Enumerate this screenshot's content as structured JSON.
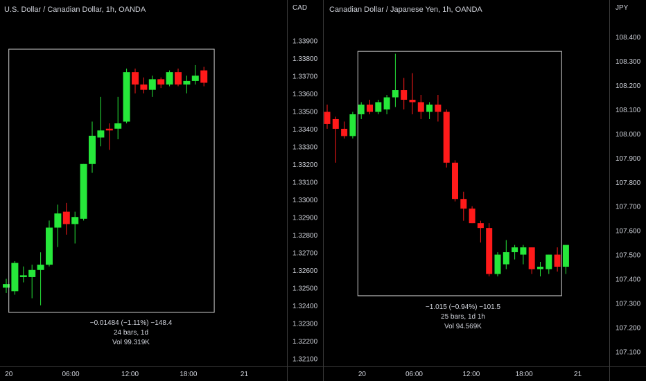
{
  "colors": {
    "background": "#000000",
    "text": "#d1d4dc",
    "up": "#26e83a",
    "down": "#ff1a1a",
    "divider": "#3a3a3a",
    "range_box": "#cfcfcf"
  },
  "chart_data": [
    {
      "type": "candlestick",
      "title": "U.S. Dollar / Canadian Dollar, 1h, OANDA",
      "currency": "CAD",
      "ylim": [
        1.3205,
        1.3405
      ],
      "y_ticks": [
        "1.33900",
        "1.33800",
        "1.33700",
        "1.33600",
        "1.33500",
        "1.33400",
        "1.33300",
        "1.33200",
        "1.33100",
        "1.33000",
        "1.32900",
        "1.32800",
        "1.32700",
        "1.32600",
        "1.32500",
        "1.32400",
        "1.32300",
        "1.32200",
        "1.32100"
      ],
      "x_ticks": [
        {
          "label": "20",
          "index": 0.3
        },
        {
          "label": "06:00",
          "index": 7.5
        },
        {
          "label": "12:00",
          "index": 14.4
        },
        {
          "label": "18:00",
          "index": 21.2
        },
        {
          "label": "21",
          "index": 27.7
        }
      ],
      "candles": [
        [
          1.325,
          1.3252,
          1.3247,
          1.3255
        ],
        [
          1.3248,
          1.3264,
          1.3246,
          1.3265
        ],
        [
          1.3256,
          1.3257,
          1.3253,
          1.3262
        ],
        [
          1.3256,
          1.326,
          1.3244,
          1.3263
        ],
        [
          1.326,
          1.3263,
          1.324,
          1.327
        ],
        [
          1.3263,
          1.3284,
          1.3262,
          1.3288
        ],
        [
          1.3284,
          1.3292,
          1.3273,
          1.3297
        ],
        [
          1.3293,
          1.3286,
          1.328,
          1.3298
        ],
        [
          1.3286,
          1.329,
          1.3275,
          1.3293
        ],
        [
          1.3289,
          1.332,
          1.3288,
          1.332
        ],
        [
          1.332,
          1.3336,
          1.3315,
          1.3344
        ],
        [
          1.3335,
          1.3339,
          1.333,
          1.3358
        ],
        [
          1.334,
          1.3339,
          1.3328,
          1.3343
        ],
        [
          1.334,
          1.3343,
          1.3334,
          1.3358
        ],
        [
          1.3344,
          1.3372,
          1.3343,
          1.3374
        ],
        [
          1.3372,
          1.3365,
          1.336,
          1.3374
        ],
        [
          1.3365,
          1.3362,
          1.336,
          1.3369
        ],
        [
          1.3362,
          1.3368,
          1.3358,
          1.337
        ],
        [
          1.3368,
          1.3365,
          1.3363,
          1.3369
        ],
        [
          1.3365,
          1.3372,
          1.3364,
          1.3373
        ],
        [
          1.3372,
          1.3365,
          1.3364,
          1.3374
        ],
        [
          1.3365,
          1.3367,
          1.336,
          1.337
        ],
        [
          1.3367,
          1.337,
          1.3365,
          1.3376
        ],
        [
          1.3373,
          1.3366,
          1.3364,
          1.3375
        ]
      ],
      "range_box": {
        "from_index": 0.8,
        "to_index": 24.7,
        "high": 1.3385,
        "low": 1.3236
      },
      "range_stats": {
        "change": "−0.01484 (−1.11%) −148.4",
        "bars": "24 bars, 1d",
        "volume": "Vol 99.319K"
      }
    },
    {
      "type": "candlestick",
      "title": "Canadian Dollar / Japanese Yen, 1h, OANDA",
      "currency": "JPY",
      "ylim": [
        107.035,
        108.495
      ],
      "y_ticks": [
        "108.400",
        "108.300",
        "108.200",
        "108.100",
        "108.000",
        "107.900",
        "107.800",
        "107.700",
        "107.600",
        "107.500",
        "107.400",
        "107.300",
        "107.200",
        "107.100"
      ],
      "x_ticks": [
        {
          "label": "20",
          "index": 4.1
        },
        {
          "label": "06:00",
          "index": 10.2
        },
        {
          "label": "12:00",
          "index": 16.9
        },
        {
          "label": "18:00",
          "index": 23.1
        },
        {
          "label": "21",
          "index": 29.4
        }
      ],
      "candles": [
        [
          108.09,
          108.04,
          108.02,
          108.12
        ],
        [
          108.06,
          108.02,
          107.88,
          108.07
        ],
        [
          108.02,
          107.99,
          107.98,
          108.05
        ],
        [
          107.99,
          108.08,
          107.98,
          108.09
        ],
        [
          108.08,
          108.12,
          108.06,
          108.13
        ],
        [
          108.12,
          108.09,
          108.08,
          108.14
        ],
        [
          108.09,
          108.13,
          108.08,
          108.14
        ],
        [
          108.1,
          108.15,
          108.08,
          108.16
        ],
        [
          108.15,
          108.18,
          108.11,
          108.33
        ],
        [
          108.18,
          108.14,
          108.1,
          108.23
        ],
        [
          108.14,
          108.13,
          108.08,
          108.25
        ],
        [
          108.13,
          108.09,
          108.06,
          108.16
        ],
        [
          108.09,
          108.12,
          108.06,
          108.13
        ],
        [
          108.12,
          108.09,
          108.05,
          108.16
        ],
        [
          108.09,
          107.88,
          107.86,
          108.1
        ],
        [
          107.88,
          107.73,
          107.72,
          107.89
        ],
        [
          107.73,
          107.69,
          107.64,
          107.76
        ],
        [
          107.69,
          107.63,
          107.63,
          107.7
        ],
        [
          107.63,
          107.61,
          107.55,
          107.64
        ],
        [
          107.61,
          107.42,
          107.41,
          107.63
        ],
        [
          107.42,
          107.5,
          107.41,
          107.51
        ],
        [
          107.46,
          107.51,
          107.44,
          107.56
        ],
        [
          107.51,
          107.53,
          107.48,
          107.54
        ],
        [
          107.5,
          107.53,
          107.46,
          107.54
        ],
        [
          107.53,
          107.44,
          107.42,
          107.53
        ],
        [
          107.44,
          107.45,
          107.41,
          107.47
        ],
        [
          107.44,
          107.5,
          107.42,
          107.5
        ],
        [
          107.5,
          107.45,
          107.43,
          107.53
        ],
        [
          107.45,
          107.54,
          107.42,
          107.54
        ]
      ],
      "range_box": {
        "from_index": 4.1,
        "to_index": 28.0,
        "high": 108.34,
        "low": 107.33
      },
      "range_stats": {
        "change": "−1.015 (−0.94%) −101.5",
        "bars": "25 bars, 1d 1h",
        "volume": "Vol 94.569K"
      }
    }
  ]
}
